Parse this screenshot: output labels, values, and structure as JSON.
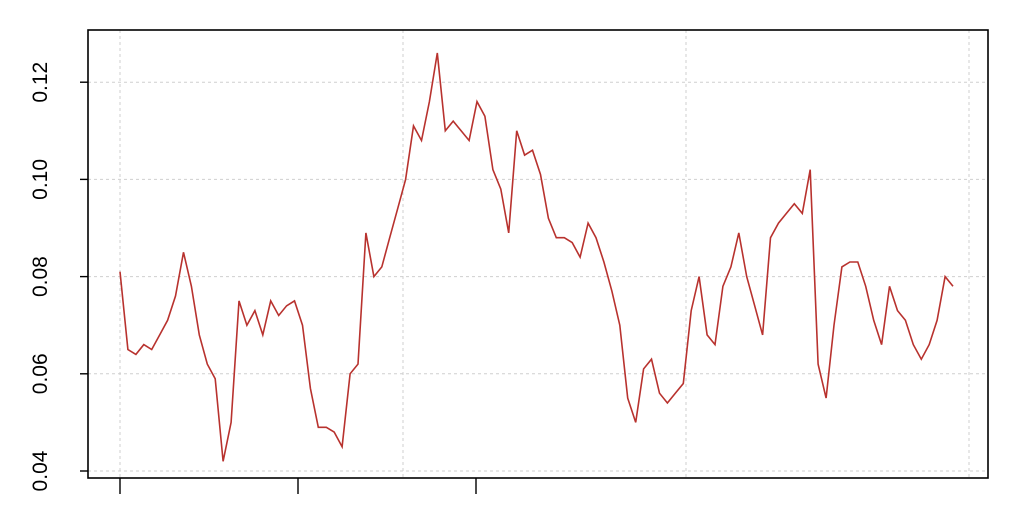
{
  "chart_data": {
    "type": "line",
    "title": "",
    "xlabel": "",
    "ylabel": "",
    "ylim": [
      0.038,
      0.13
    ],
    "yticks": [
      "0.04",
      "0.06",
      "0.08",
      "0.10",
      "0.12"
    ],
    "ytick_values": [
      0.04,
      0.06,
      0.08,
      0.1,
      0.12
    ],
    "grid": true,
    "line_color": "#b8322e",
    "series": [
      {
        "values": [
          0.081,
          0.065,
          0.064,
          0.066,
          0.065,
          0.068,
          0.071,
          0.076,
          0.085,
          0.078,
          0.068,
          0.062,
          0.059,
          0.042,
          0.05,
          0.075,
          0.07,
          0.073,
          0.068,
          0.075,
          0.072,
          0.074,
          0.075,
          0.07,
          0.057,
          0.049,
          0.049,
          0.048,
          0.045,
          0.06,
          0.062,
          0.089,
          0.08,
          0.082,
          0.088,
          0.094,
          0.1,
          0.111,
          0.108,
          0.116,
          0.126,
          0.11,
          0.112,
          0.11,
          0.108,
          0.116,
          0.113,
          0.102,
          0.098,
          0.089,
          0.11,
          0.105,
          0.106,
          0.101,
          0.092,
          0.088,
          0.088,
          0.087,
          0.084,
          0.091,
          0.088,
          0.083,
          0.077,
          0.07,
          0.055,
          0.05,
          0.061,
          0.063,
          0.056,
          0.054,
          0.056,
          0.058,
          0.073,
          0.08,
          0.068,
          0.066,
          0.078,
          0.082,
          0.089,
          0.08,
          0.074,
          0.068,
          0.088,
          0.091,
          0.093,
          0.095,
          0.093,
          0.102,
          0.062,
          0.055,
          0.07,
          0.082,
          0.083,
          0.083,
          0.078,
          0.071,
          0.066,
          0.078,
          0.073,
          0.071,
          0.066,
          0.063,
          0.066,
          0.071,
          0.08,
          0.078
        ]
      }
    ]
  }
}
